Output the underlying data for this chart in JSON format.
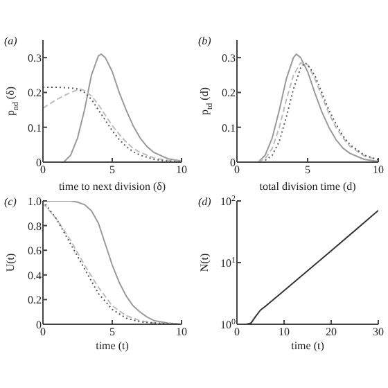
{
  "chart_data": [
    {
      "type": "line",
      "annotations": [
        "(a)"
      ],
      "xlabel": "time to next division (δ)",
      "ylabel": "p$_{nd}$ (δ)",
      "xlim": [
        0,
        10
      ],
      "xticks": [
        0,
        5,
        10
      ],
      "ylim": [
        0,
        0.35
      ],
      "yticks": [
        0,
        0.1,
        0.2,
        0.3
      ],
      "marker": "none",
      "series": [
        {
          "color": "#9a9a9a",
          "line_style": "solid",
          "x": [
            1.5,
            2,
            2.5,
            3,
            3.5,
            4,
            4.2,
            4.5,
            5,
            5.5,
            6,
            6.5,
            7,
            7.5,
            8,
            9,
            10
          ],
          "values": [
            0,
            0.02,
            0.07,
            0.15,
            0.25,
            0.305,
            0.31,
            0.3,
            0.26,
            0.2,
            0.15,
            0.105,
            0.07,
            0.045,
            0.028,
            0.01,
            0.003
          ]
        },
        {
          "color": "#bdbdbd",
          "line_style": "dashed",
          "x": [
            0,
            1,
            2,
            2.7,
            3,
            3.5,
            4,
            4.5,
            5,
            5.5,
            6,
            6.5,
            7,
            8,
            9,
            10
          ],
          "values": [
            0.155,
            0.18,
            0.2,
            0.21,
            0.205,
            0.19,
            0.165,
            0.135,
            0.105,
            0.08,
            0.058,
            0.04,
            0.028,
            0.012,
            0.005,
            0.002
          ]
        },
        {
          "color": "#555555",
          "line_style": "dotted",
          "x": [
            0,
            1,
            2,
            2.5,
            3,
            3.5,
            4,
            4.5,
            5,
            5.5,
            6,
            6.5,
            7,
            8,
            9,
            10
          ],
          "values": [
            0.215,
            0.215,
            0.213,
            0.21,
            0.2,
            0.18,
            0.15,
            0.12,
            0.09,
            0.065,
            0.045,
            0.03,
            0.02,
            0.008,
            0.003,
            0.001
          ]
        }
      ]
    },
    {
      "type": "line",
      "annotations": [
        "(b)"
      ],
      "xlabel": "total division time (d)",
      "ylabel": "p$_{td}$ (d)",
      "xlim": [
        0,
        10
      ],
      "xticks": [
        0,
        5,
        10
      ],
      "ylim": [
        0,
        0.35
      ],
      "yticks": [
        0,
        0.1,
        0.2,
        0.3
      ],
      "marker": "none",
      "series": [
        {
          "color": "#9a9a9a",
          "line_style": "solid",
          "x": [
            0,
            1.5,
            2,
            2.5,
            3,
            3.5,
            4,
            4.2,
            4.5,
            5,
            5.5,
            6,
            6.5,
            7,
            7.5,
            8,
            9,
            10
          ],
          "values": [
            0,
            0,
            0.02,
            0.07,
            0.15,
            0.24,
            0.3,
            0.31,
            0.3,
            0.26,
            0.2,
            0.145,
            0.1,
            0.065,
            0.04,
            0.025,
            0.008,
            0.002
          ]
        },
        {
          "color": "#bdbdbd",
          "line_style": "dashed",
          "x": [
            1.5,
            2,
            2.5,
            3,
            3.5,
            4,
            4.5,
            5,
            5.5,
            6,
            6.5,
            7,
            7.5,
            8,
            9,
            10
          ],
          "values": [
            0,
            0.01,
            0.04,
            0.1,
            0.18,
            0.25,
            0.285,
            0.28,
            0.24,
            0.19,
            0.14,
            0.1,
            0.07,
            0.045,
            0.018,
            0.006
          ]
        },
        {
          "color": "#555555",
          "line_style": "dotted",
          "x": [
            2,
            2.5,
            3,
            3.5,
            4,
            4.5,
            4.8,
            5,
            5.5,
            6,
            6.5,
            7,
            7.5,
            8,
            9,
            10
          ],
          "values": [
            0.005,
            0.02,
            0.06,
            0.13,
            0.21,
            0.27,
            0.285,
            0.28,
            0.25,
            0.2,
            0.15,
            0.11,
            0.075,
            0.05,
            0.02,
            0.007
          ]
        }
      ]
    },
    {
      "type": "line",
      "annotations": [
        "(c)"
      ],
      "xlabel": "time (t)",
      "ylabel": "U(t)",
      "xlim": [
        0,
        10
      ],
      "xticks": [
        0,
        5,
        10
      ],
      "ylim": [
        0,
        1
      ],
      "yticks": [
        0,
        0.2,
        0.4,
        0.6,
        0.8,
        {
          "value": 1,
          "label": "1.0"
        }
      ],
      "marker": "none",
      "series": [
        {
          "color": "#9a9a9a",
          "line_style": "solid",
          "x": [
            0,
            2,
            2.5,
            3,
            3.5,
            4,
            4.5,
            5,
            5.5,
            6,
            6.5,
            7,
            7.5,
            8,
            9,
            10
          ],
          "values": [
            1,
            1,
            0.99,
            0.97,
            0.92,
            0.82,
            0.65,
            0.48,
            0.34,
            0.23,
            0.15,
            0.1,
            0.06,
            0.03,
            0.01,
            0
          ]
        },
        {
          "color": "#bdbdbd",
          "line_style": "dashed",
          "x": [
            0,
            1,
            2,
            3,
            4,
            5,
            6,
            7,
            8,
            10
          ],
          "values": [
            0.98,
            0.85,
            0.68,
            0.48,
            0.3,
            0.15,
            0.07,
            0.03,
            0.01,
            0
          ]
        },
        {
          "color": "#555555",
          "line_style": "dotted",
          "x": [
            0,
            1,
            2,
            3,
            4,
            5,
            6,
            7,
            8,
            10
          ],
          "values": [
            1,
            0.85,
            0.65,
            0.45,
            0.25,
            0.12,
            0.05,
            0.02,
            0.01,
            0
          ]
        }
      ]
    },
    {
      "type": "line",
      "annotations": [
        "(d)"
      ],
      "xlabel": "time (t)",
      "ylabel": "N(t)",
      "xlim": [
        0,
        30
      ],
      "xticks": [
        0,
        10,
        20,
        30
      ],
      "ylim": [
        1,
        100
      ],
      "yticks": [
        {
          "value": 1,
          "label": "10$^{0}$"
        },
        {
          "value": 10,
          "label": "10$^{1}$"
        },
        {
          "value": 100,
          "label": "10$^{2}$"
        }
      ],
      "log": "y",
      "marker": "none",
      "series": [
        {
          "color": "#333333",
          "line_style": "solid",
          "x": [
            2,
            3,
            4,
            5,
            6,
            10,
            20,
            30
          ],
          "values": [
            1,
            1.05,
            1.35,
            1.7,
            1.95,
            3.5,
            15.5,
            70
          ]
        }
      ]
    }
  ]
}
